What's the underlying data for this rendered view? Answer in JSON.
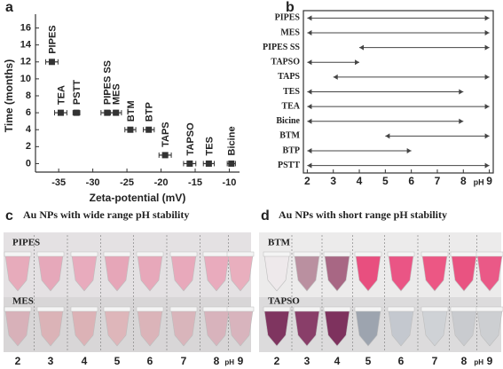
{
  "chart_data": [
    {
      "type": "scatter",
      "label": "a",
      "xlabel": "Zeta-potential (mV)",
      "ylabel": "Time (months)",
      "categories": [
        "PIPES",
        "TEA",
        "PSTT",
        "PIPES SS",
        "MES",
        "BTM",
        "BTP",
        "TAPS",
        "TAPSO",
        "TES",
        "Bicine"
      ],
      "x": [
        -36,
        -34.7,
        -32.4,
        -27.9,
        -26.6,
        -24.5,
        -21.8,
        -19.4,
        -15.8,
        -13,
        -9.7
      ],
      "x_err": [
        0.9,
        0.9,
        0.5,
        0.9,
        0.8,
        0.8,
        0.8,
        0.9,
        0.9,
        0.8,
        0.6
      ],
      "values": [
        12,
        6,
        6,
        6,
        6,
        4,
        4,
        1,
        0,
        0,
        0
      ],
      "color": "#333333",
      "xlim": [
        -38.4,
        -8.5
      ],
      "xticks": [
        -35,
        -30,
        -25,
        -20,
        -15,
        -10
      ],
      "ylim": [
        -1,
        17
      ],
      "yticks": [
        0,
        2,
        4,
        6,
        8,
        10,
        12,
        14,
        16
      ]
    },
    {
      "type": "range",
      "label": "b",
      "xlabel": "pH",
      "categories": [
        "PIPES",
        "MES",
        "PIPES SS",
        "TAPSO",
        "TAPS",
        "TES",
        "TEA",
        "Bicine",
        "BTM",
        "BTP",
        "PSTT"
      ],
      "start": [
        2,
        2,
        4,
        2,
        3,
        2,
        2,
        2,
        5,
        2,
        2
      ],
      "end": [
        9,
        9,
        9,
        4,
        9,
        8,
        9,
        8,
        9,
        6,
        9
      ],
      "color": "#444444",
      "xlim": [
        1.85,
        9.15
      ],
      "xticks": [
        2,
        3,
        4,
        5,
        6,
        7,
        8,
        9
      ]
    }
  ],
  "panels": [
    {
      "label": "c",
      "title": "Au NPs with wide range pH stability",
      "rows": [
        "PIPES",
        "MES"
      ],
      "ph_values": [
        2,
        3,
        4,
        5,
        6,
        7,
        8,
        9
      ],
      "ph_unit": "pH"
    },
    {
      "label": "d",
      "title": "Au NPs with short range pH stability",
      "rows": [
        "BTM",
        "TAPSO"
      ],
      "ph_values": [
        2,
        3,
        4,
        5,
        6,
        7,
        8,
        9
      ],
      "ph_unit": "pH"
    }
  ]
}
